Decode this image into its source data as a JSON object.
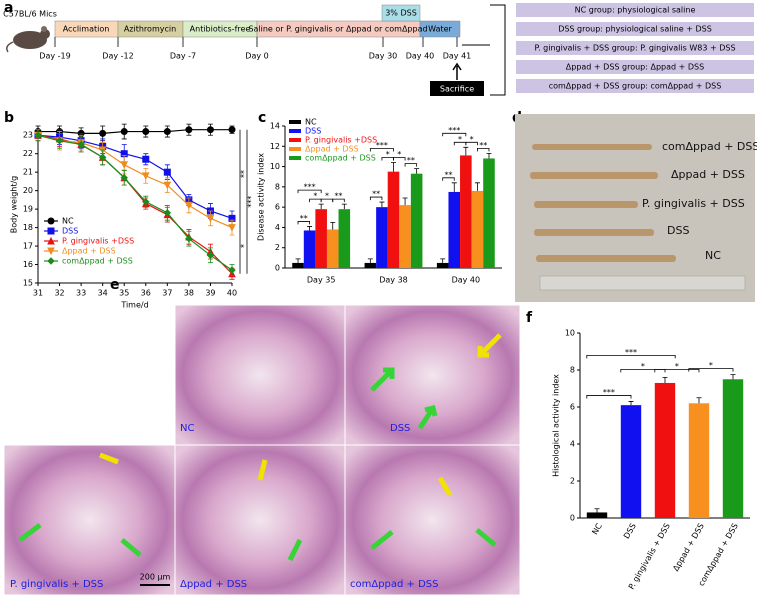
{
  "panel_labels": [
    "a",
    "b",
    "c",
    "d",
    "e",
    "f"
  ],
  "timeline": {
    "mouse_label": "C57BL/6 Mics",
    "phases": [
      "Acclimation",
      "Azithromycin",
      "Antibiotics-free",
      "Saline or P. gingivalis or Δppad or comΔppad",
      "Water"
    ],
    "dss_label": "3% DSS",
    "days": [
      "Day -19",
      "Day -12",
      "Day -7",
      "Day 0",
      "Day 30",
      "Day 40",
      "Day 41"
    ],
    "sacrifice": "Sacrifice",
    "groups": [
      "NC group: physiological saline",
      "DSS group: physiological saline + DSS",
      "P. gingivalis + DSS group: P. gingivalis W83 + DSS",
      "Δppad + DSS group: Δppad + DSS",
      "comΔppad + DSS group: comΔppad + DSS"
    ]
  },
  "chart_data": [
    {
      "type": "line",
      "x_label": "Time/d",
      "y_label": "Body weight/g",
      "x": [
        31,
        32,
        33,
        34,
        35,
        36,
        37,
        38,
        39,
        40
      ],
      "xlim": [
        31,
        40
      ],
      "xticks": [
        31,
        32,
        33,
        34,
        35,
        36,
        37,
        38,
        39,
        40
      ],
      "ylim": [
        15,
        23.5
      ],
      "yticks": [
        15,
        16,
        17,
        18,
        19,
        20,
        21,
        22,
        23
      ],
      "series": [
        {
          "name": "NC",
          "color": "#000000",
          "marker": "circle",
          "values": [
            23.2,
            23.2,
            23.1,
            23.1,
            23.2,
            23.2,
            23.2,
            23.3,
            23.3,
            23.3
          ],
          "errors": [
            0.3,
            0.3,
            0.3,
            0.4,
            0.4,
            0.3,
            0.3,
            0.3,
            0.3,
            0.2
          ]
        },
        {
          "name": "DSS",
          "color": "#1010e8",
          "marker": "square",
          "values": [
            23.0,
            22.9,
            22.7,
            22.4,
            22.0,
            21.7,
            21.0,
            19.5,
            18.9,
            18.5
          ],
          "errors": [
            0.3,
            0.4,
            0.4,
            0.4,
            0.5,
            0.3,
            0.4,
            0.3,
            0.4,
            0.4
          ]
        },
        {
          "name": "P. gingivalis +DSS",
          "color": "#e81010",
          "marker": "triangle",
          "values": [
            23.0,
            22.8,
            22.5,
            21.8,
            20.7,
            19.3,
            18.7,
            17.5,
            16.7,
            15.5
          ],
          "errors": [
            0.3,
            0.4,
            0.4,
            0.4,
            0.4,
            0.3,
            0.4,
            0.4,
            0.4,
            0.3
          ]
        },
        {
          "name": "Δppad + DSS",
          "color": "#f08c1c",
          "marker": "triangle-down",
          "values": [
            23.0,
            22.7,
            22.6,
            22.2,
            21.4,
            20.8,
            20.3,
            19.2,
            18.5,
            18.0
          ],
          "errors": [
            0.3,
            0.5,
            0.4,
            0.4,
            0.5,
            0.4,
            0.4,
            0.4,
            0.4,
            0.4
          ]
        },
        {
          "name": "comΔppad + DSS",
          "color": "#1a8c1a",
          "marker": "diamond",
          "values": [
            23.0,
            22.7,
            22.5,
            21.8,
            20.7,
            19.4,
            18.8,
            17.4,
            16.5,
            15.7
          ],
          "errors": [
            0.3,
            0.4,
            0.4,
            0.4,
            0.4,
            0.3,
            0.4,
            0.4,
            0.4,
            0.3
          ]
        }
      ],
      "annotations": [
        "**",
        "***",
        "*"
      ],
      "legend": "lower-left"
    },
    {
      "type": "bar",
      "y_label": "Disease activity index",
      "categories": [
        "Day 35",
        "Day 38",
        "Day 40"
      ],
      "ylim": [
        0,
        14
      ],
      "yticks": [
        0,
        2,
        4,
        6,
        8,
        10,
        12,
        14
      ],
      "series": [
        {
          "name": "NC",
          "color": "#000000",
          "values": [
            0.5,
            0.5,
            0.5
          ],
          "errors": [
            0.4,
            0.4,
            0.4
          ]
        },
        {
          "name": "DSS",
          "color": "#1010f0",
          "values": [
            3.7,
            6.0,
            7.5
          ],
          "errors": [
            0.4,
            0.5,
            0.9
          ]
        },
        {
          "name": "P. gingivalis +DSS",
          "color": "#f01010",
          "values": [
            5.8,
            9.5,
            11.1
          ],
          "errors": [
            0.5,
            0.9,
            0.8
          ]
        },
        {
          "name": "Δppad + DSS",
          "color": "#f7901e",
          "values": [
            3.8,
            6.2,
            7.6
          ],
          "errors": [
            0.7,
            0.7,
            0.8
          ]
        },
        {
          "name": "comΔppad + DSS",
          "color": "#1a9a1a",
          "values": [
            5.8,
            9.3,
            10.8
          ],
          "errors": [
            0.5,
            0.5,
            0.5
          ]
        }
      ],
      "annotations": [
        "**",
        "***",
        "*",
        "*",
        "**",
        "**",
        "***",
        "*",
        "*",
        "**",
        "**",
        "***",
        "*",
        "*",
        "**"
      ],
      "legend": "upper-left"
    },
    {
      "type": "bar",
      "y_label": "Histological activity index",
      "categories": [
        "NC",
        "DSS",
        "P. gingivalis + DSS",
        "Δppad + DSS",
        "comΔppad + DSS"
      ],
      "ylim": [
        0,
        10
      ],
      "yticks": [
        0,
        2,
        4,
        6,
        8,
        10
      ],
      "values": [
        0.3,
        6.1,
        7.3,
        6.2,
        7.5
      ],
      "errors": [
        0.2,
        0.2,
        0.3,
        0.3,
        0.25
      ],
      "colors": [
        "#000000",
        "#1010f0",
        "#f01010",
        "#f7901e",
        "#1a9a1a"
      ],
      "annotations": [
        "***",
        "***",
        "*",
        "*",
        "*"
      ]
    }
  ],
  "photo": {
    "labels": [
      "comΔppad + DSS",
      "Δppad + DSS",
      "P. gingivalis + DSS",
      "DSS",
      "NC"
    ]
  },
  "histology": {
    "labels": [
      "NC",
      "DSS",
      "P. gingivalis + DSS",
      "Δppad + DSS",
      "comΔppad + DSS"
    ],
    "scale_bar": "200 µm"
  }
}
